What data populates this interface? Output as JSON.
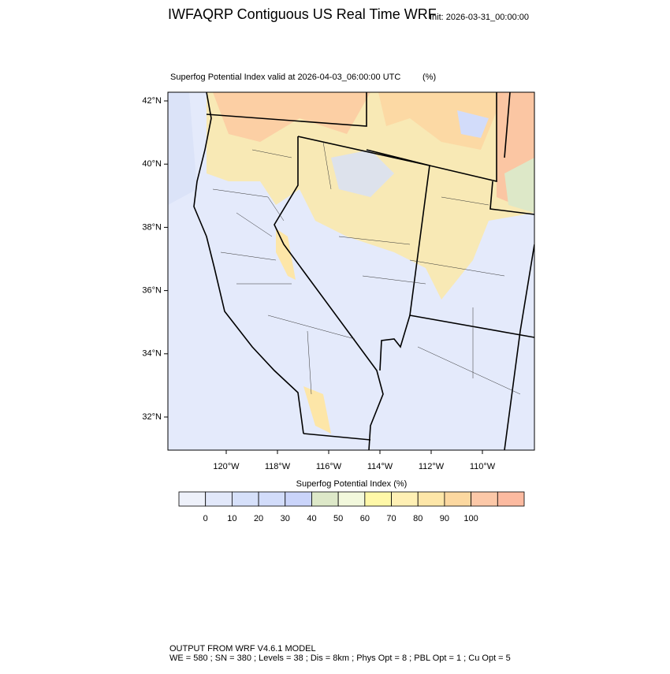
{
  "header": {
    "title": "IWFAQRP Contiguous US Real Time WRF",
    "init": "Init: 2026-03-31_00:00:00"
  },
  "map": {
    "subtitle": "Superfog Potential Index valid at 2026-04-03_06:00:00 UTC",
    "units": "(%)",
    "lat_labels": [
      "42°N",
      "40°N",
      "38°N",
      "36°N",
      "34°N",
      "32°N"
    ],
    "lon_labels": [
      "120°W",
      "118°W",
      "116°W",
      "114°W",
      "112°W",
      "110°W"
    ]
  },
  "colorbar": {
    "title": "Superfog Potential Index  (%)",
    "colors": [
      "#eef1fa",
      "#e2e8fa",
      "#d6e0fa",
      "#d2dcfa",
      "#cad4fa",
      "#dde8c8",
      "#f2f8dc",
      "#fff8a8",
      "#fff0b4",
      "#fde6a8",
      "#fcd8a0",
      "#fcc8a8",
      "#fcbaa0"
    ],
    "ticks": [
      0,
      10,
      20,
      30,
      40,
      50,
      60,
      70,
      80,
      90,
      100
    ]
  },
  "footer": {
    "line1": "OUTPUT FROM WRF V4.6.1 MODEL",
    "line2": "WE = 580 ; SN = 380 ; Levels = 38 ; Dis = 8km ; Phys Opt = 8 ; PBL Opt = 1 ; Cu Opt = 5"
  }
}
